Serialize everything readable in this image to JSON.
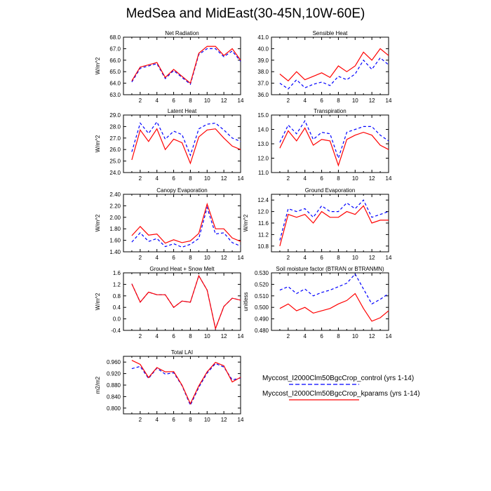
{
  "title": "MedSea and MidEast(30-45N,10W-60E)",
  "legend": [
    {
      "label": "Myccost_I2000Clm50BgcCrop_control (yrs 1-14)",
      "color": "#0000ff",
      "dash": true
    },
    {
      "label": "Myccost_I2000Clm50BgcCrop_kparams (yrs 1-14)",
      "color": "#ff0000",
      "dash": false
    }
  ],
  "chart_data": [
    {
      "type": "line",
      "title": "Net Radiation",
      "ylabel": "W/m^2",
      "ylim": [
        63.0,
        68.0
      ],
      "yticks": [
        "63.0",
        "64.0",
        "65.0",
        "66.0",
        "67.0",
        "68.0"
      ],
      "ytick_values": [
        63,
        64,
        65,
        66,
        67,
        68
      ],
      "xlim": [
        0,
        14
      ],
      "xticks": [
        "2",
        "4",
        "6",
        "8",
        "10",
        "12",
        "14"
      ],
      "ytick_side": "left",
      "x": [
        1,
        2,
        3,
        4,
        5,
        6,
        7,
        8,
        9,
        10,
        11,
        12,
        13,
        14
      ],
      "series": [
        {
          "label_ref": "control",
          "color": "#0000ff",
          "dash": true,
          "values": [
            64.1,
            65.3,
            65.5,
            65.7,
            64.4,
            65.1,
            64.5,
            63.9,
            66.5,
            67.0,
            67.0,
            66.3,
            66.8,
            65.9
          ]
        },
        {
          "label_ref": "kparams",
          "color": "#ff0000",
          "dash": false,
          "values": [
            64.2,
            65.4,
            65.6,
            65.8,
            64.5,
            65.2,
            64.6,
            64.0,
            66.6,
            67.2,
            67.2,
            66.4,
            67.0,
            66.0
          ]
        }
      ]
    },
    {
      "type": "line",
      "title": "Sensible Heat",
      "ylabel": "",
      "ylim": [
        36.0,
        41.0
      ],
      "yticks": [
        "36.0",
        "37.0",
        "38.0",
        "39.0",
        "40.0",
        "41.0"
      ],
      "ytick_values": [
        36,
        37,
        38,
        39,
        40,
        41
      ],
      "xlim": [
        0,
        14
      ],
      "xticks": [
        "2",
        "4",
        "6",
        "8",
        "10",
        "12",
        "14"
      ],
      "ytick_side": "left",
      "x": [
        1,
        2,
        3,
        4,
        5,
        6,
        7,
        8,
        9,
        10,
        11,
        12,
        13,
        14
      ],
      "series": [
        {
          "label_ref": "control",
          "color": "#0000ff",
          "dash": true,
          "values": [
            37.0,
            36.5,
            37.3,
            36.6,
            36.9,
            37.1,
            36.8,
            37.6,
            37.3,
            37.8,
            39.0,
            38.2,
            39.2,
            38.6
          ]
        },
        {
          "label_ref": "kparams",
          "color": "#ff0000",
          "dash": false,
          "values": [
            37.8,
            37.2,
            38.0,
            37.3,
            37.6,
            37.9,
            37.5,
            38.5,
            38.0,
            38.5,
            39.7,
            39.0,
            40.0,
            39.4
          ]
        }
      ]
    },
    {
      "type": "line",
      "title": "Latent Heat",
      "ylabel": "W/m^2",
      "ylim": [
        24.0,
        29.0
      ],
      "yticks": [
        "24.0",
        "25.0",
        "26.0",
        "27.0",
        "28.0",
        "29.0"
      ],
      "ytick_values": [
        24,
        25,
        26,
        27,
        28,
        29
      ],
      "xlim": [
        0,
        14
      ],
      "xticks": [
        "2",
        "4",
        "6",
        "8",
        "10",
        "12",
        "14"
      ],
      "ytick_side": "left",
      "x": [
        1,
        2,
        3,
        4,
        5,
        6,
        7,
        8,
        9,
        10,
        11,
        12,
        13,
        14
      ],
      "series": [
        {
          "label_ref": "control",
          "color": "#0000ff",
          "dash": true,
          "values": [
            25.8,
            28.3,
            27.4,
            28.4,
            26.9,
            27.6,
            27.3,
            25.5,
            27.8,
            28.2,
            28.3,
            27.7,
            27.0,
            26.7
          ]
        },
        {
          "label_ref": "kparams",
          "color": "#ff0000",
          "dash": false,
          "values": [
            25.1,
            27.7,
            26.7,
            27.8,
            26.0,
            26.9,
            26.6,
            24.8,
            27.1,
            27.7,
            27.8,
            27.0,
            26.3,
            26.0
          ]
        }
      ]
    },
    {
      "type": "line",
      "title": "Transpiration",
      "ylabel": "",
      "ylim": [
        11.0,
        15.0
      ],
      "yticks": [
        "11.0",
        "12.0",
        "13.0",
        "14.0",
        "15.0"
      ],
      "ytick_values": [
        11,
        12,
        13,
        14,
        15
      ],
      "xlim": [
        0,
        14
      ],
      "xticks": [
        "2",
        "4",
        "6",
        "8",
        "10",
        "12",
        "14"
      ],
      "ytick_side": "left",
      "x": [
        1,
        2,
        3,
        4,
        5,
        6,
        7,
        8,
        9,
        10,
        11,
        12,
        13,
        14
      ],
      "series": [
        {
          "label_ref": "control",
          "color": "#0000ff",
          "dash": true,
          "values": [
            13.1,
            14.3,
            13.7,
            14.6,
            13.3,
            13.8,
            13.7,
            12.0,
            13.8,
            14.0,
            14.2,
            14.2,
            13.6,
            13.2
          ]
        },
        {
          "label_ref": "kparams",
          "color": "#ff0000",
          "dash": false,
          "values": [
            12.7,
            13.9,
            13.2,
            14.1,
            12.9,
            13.3,
            13.2,
            11.5,
            13.3,
            13.6,
            13.8,
            13.6,
            12.9,
            12.6
          ]
        }
      ]
    },
    {
      "type": "line",
      "title": "Canopy Evaporation",
      "ylabel": "W/m^2",
      "ylim": [
        1.4,
        2.4
      ],
      "yticks": [
        "1.40",
        "1.60",
        "1.80",
        "2.00",
        "2.20",
        "2.40"
      ],
      "ytick_values": [
        1.4,
        1.6,
        1.8,
        2.0,
        2.2,
        2.4
      ],
      "xlim": [
        0,
        14
      ],
      "xticks": [
        "2",
        "4",
        "6",
        "8",
        "10",
        "12",
        "14"
      ],
      "ytick_side": "left",
      "x": [
        1,
        2,
        3,
        4,
        5,
        6,
        7,
        8,
        9,
        10,
        11,
        12,
        13,
        14
      ],
      "series": [
        {
          "label_ref": "control",
          "color": "#0000ff",
          "dash": true,
          "values": [
            1.57,
            1.73,
            1.58,
            1.63,
            1.49,
            1.54,
            1.48,
            1.53,
            1.63,
            2.17,
            1.71,
            1.73,
            1.56,
            1.5
          ]
        },
        {
          "label_ref": "kparams",
          "color": "#ff0000",
          "dash": false,
          "values": [
            1.68,
            1.84,
            1.69,
            1.71,
            1.55,
            1.61,
            1.56,
            1.59,
            1.72,
            2.23,
            1.8,
            1.8,
            1.64,
            1.58
          ]
        }
      ]
    },
    {
      "type": "line",
      "title": "Ground Evaporation",
      "ylabel": "W/m^2",
      "ylim": [
        10.6,
        12.6
      ],
      "yticks": [
        "10.8",
        "11.2",
        "11.6",
        "12.0",
        "12.4"
      ],
      "ytick_values": [
        10.8,
        11.2,
        11.6,
        12.0,
        12.4
      ],
      "xlim": [
        0,
        14
      ],
      "xticks": [
        "2",
        "4",
        "6",
        "8",
        "10",
        "12",
        "14"
      ],
      "ytick_side": "left",
      "x": [
        1,
        2,
        3,
        4,
        5,
        6,
        7,
        8,
        9,
        10,
        11,
        12,
        13,
        14
      ],
      "series": [
        {
          "label_ref": "control",
          "color": "#0000ff",
          "dash": true,
          "values": [
            11.0,
            12.1,
            12.0,
            12.1,
            11.8,
            12.2,
            12.0,
            12.0,
            12.3,
            12.1,
            12.4,
            11.8,
            11.9,
            12.0
          ]
        },
        {
          "label_ref": "kparams",
          "color": "#ff0000",
          "dash": false,
          "values": [
            10.8,
            11.9,
            11.8,
            11.9,
            11.6,
            12.0,
            11.8,
            11.8,
            12.0,
            11.9,
            12.2,
            11.6,
            11.7,
            11.7
          ]
        }
      ]
    },
    {
      "type": "line",
      "title": "Ground Heat + Snow Melt",
      "ylabel": "W/m^2",
      "ylim": [
        -0.4,
        1.6
      ],
      "yticks": [
        "-0.4",
        "0.0",
        "0.4",
        "0.8",
        "1.2",
        "1.6"
      ],
      "ytick_values": [
        -0.4,
        0,
        0.4,
        0.8,
        1.2,
        1.6
      ],
      "xlim": [
        0,
        14
      ],
      "xticks": [
        "2",
        "4",
        "6",
        "8",
        "10",
        "12",
        "14"
      ],
      "ytick_side": "left",
      "x": [
        1,
        2,
        3,
        4,
        5,
        6,
        7,
        8,
        9,
        10,
        11,
        12,
        13,
        14
      ],
      "series": [
        {
          "label_ref": "control",
          "color": "#0000ff",
          "dash": true,
          "values": [
            1.22,
            0.58,
            0.93,
            0.84,
            0.84,
            0.4,
            0.62,
            0.58,
            1.5,
            1.0,
            -0.34,
            0.43,
            0.72,
            0.65
          ]
        },
        {
          "label_ref": "kparams",
          "color": "#ff0000",
          "dash": false,
          "values": [
            1.22,
            0.58,
            0.93,
            0.84,
            0.84,
            0.4,
            0.62,
            0.58,
            1.5,
            1.0,
            -0.34,
            0.43,
            0.72,
            0.65
          ]
        }
      ]
    },
    {
      "type": "line",
      "title": "Soil moisture factor (BTRAN or BTRANMN)",
      "ylabel": "unitless",
      "ylim": [
        0.48,
        0.53
      ],
      "yticks": [
        "0.480",
        "0.490",
        "0.500",
        "0.510",
        "0.520",
        "0.530"
      ],
      "ytick_values": [
        0.48,
        0.49,
        0.5,
        0.51,
        0.52,
        0.53
      ],
      "xlim": [
        0,
        14
      ],
      "xticks": [
        "2",
        "4",
        "6",
        "8",
        "10",
        "12",
        "14"
      ],
      "ytick_side": "left",
      "x": [
        1,
        2,
        3,
        4,
        5,
        6,
        7,
        8,
        9,
        10,
        11,
        12,
        13,
        14
      ],
      "series": [
        {
          "label_ref": "control",
          "color": "#0000ff",
          "dash": true,
          "values": [
            0.515,
            0.518,
            0.512,
            0.516,
            0.51,
            0.513,
            0.515,
            0.518,
            0.521,
            0.529,
            0.516,
            0.503,
            0.507,
            0.512
          ]
        },
        {
          "label_ref": "kparams",
          "color": "#ff0000",
          "dash": false,
          "values": [
            0.499,
            0.503,
            0.497,
            0.5,
            0.495,
            0.497,
            0.499,
            0.503,
            0.506,
            0.512,
            0.499,
            0.488,
            0.491,
            0.497
          ]
        }
      ]
    },
    {
      "type": "line",
      "title": "Total LAI",
      "ylabel": "m2/m2",
      "ylim": [
        0.78,
        0.98
      ],
      "yticks": [
        "0.800",
        "0.840",
        "0.880",
        "0.920",
        "0.960"
      ],
      "ytick_values": [
        0.8,
        0.84,
        0.88,
        0.92,
        0.96
      ],
      "xlim": [
        0,
        14
      ],
      "xticks": [
        "2",
        "4",
        "6",
        "8",
        "10",
        "12",
        "14"
      ],
      "ytick_side": "left",
      "x": [
        1,
        2,
        3,
        4,
        5,
        6,
        7,
        8,
        9,
        10,
        11,
        12,
        13,
        14
      ],
      "series": [
        {
          "label_ref": "control",
          "color": "#0000ff",
          "dash": true,
          "values": [
            0.937,
            0.945,
            0.903,
            0.939,
            0.918,
            0.923,
            0.878,
            0.81,
            0.872,
            0.922,
            0.955,
            0.943,
            0.898,
            0.905
          ]
        },
        {
          "label_ref": "kparams",
          "color": "#ff0000",
          "dash": false,
          "values": [
            0.966,
            0.952,
            0.906,
            0.941,
            0.926,
            0.927,
            0.88,
            0.815,
            0.877,
            0.926,
            0.959,
            0.947,
            0.891,
            0.907
          ]
        }
      ]
    }
  ]
}
